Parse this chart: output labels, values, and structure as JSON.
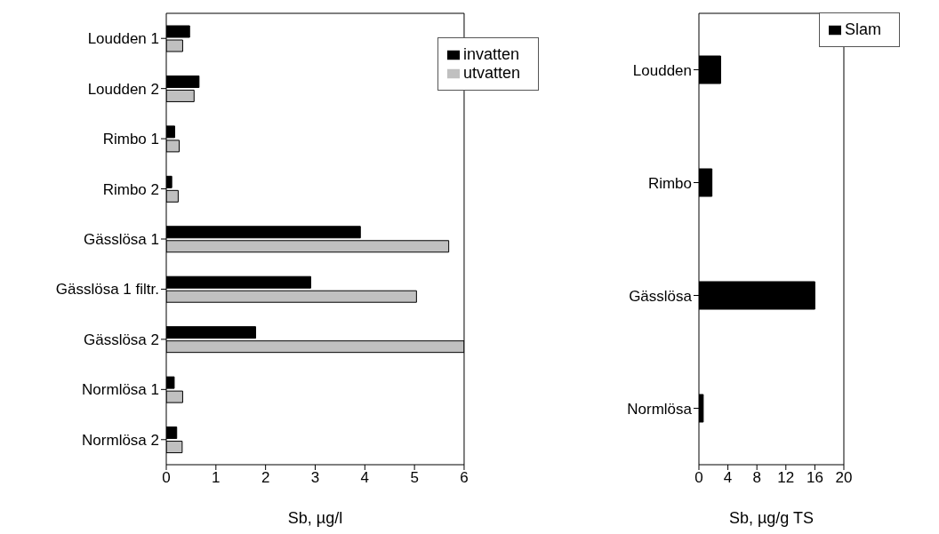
{
  "chart_data": [
    {
      "type": "bar",
      "orientation": "horizontal",
      "categories": [
        "Loudden 1",
        "Loudden 2",
        "Rimbo 1",
        "Rimbo 2",
        "Gässlösa 1",
        "Gässlösa 1 filtr.",
        "Gässlösa 2",
        "Normlösa 1",
        "Normlösa 2"
      ],
      "xlabel": "Sb, µg/l",
      "xlim": [
        0,
        6
      ],
      "xticks": [
        0,
        1,
        2,
        3,
        4,
        5,
        6
      ],
      "grid": false,
      "legend": "top right",
      "series": [
        {
          "name": "invatten",
          "color": "#000000",
          "values": [
            0.47,
            0.66,
            0.17,
            0.11,
            3.91,
            2.91,
            1.8,
            0.16,
            0.21
          ]
        },
        {
          "name": "utvatten",
          "color": "#c0c0c0",
          "values": [
            0.33,
            0.56,
            0.26,
            0.24,
            5.69,
            5.04,
            6,
            0.33,
            0.32
          ]
        }
      ]
    },
    {
      "type": "bar",
      "orientation": "horizontal",
      "categories": [
        "Loudden",
        "Rimbo",
        "Gässlösa",
        "Normlösa"
      ],
      "xlabel": "Sb, µg/g TS",
      "xlim": [
        0,
        20
      ],
      "xticks": [
        0,
        4,
        8,
        12,
        16,
        20
      ],
      "grid": false,
      "legend": "top right",
      "series": [
        {
          "name": "Slam",
          "color": "#000000",
          "values": [
            3,
            1.8,
            16,
            0.6
          ]
        }
      ]
    }
  ]
}
